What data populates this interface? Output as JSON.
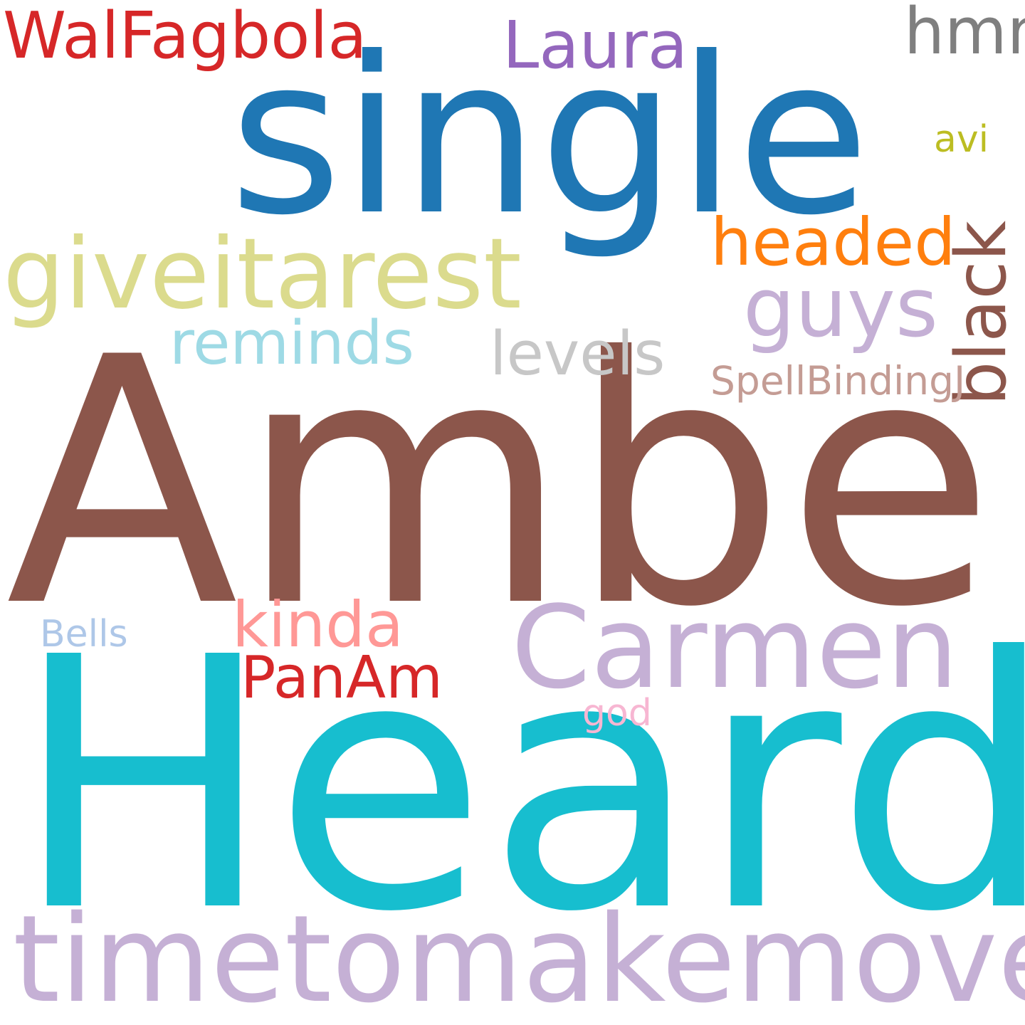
{
  "words": {
    "amber": {
      "text": "Amber",
      "color": "#8c564b"
    },
    "heard": {
      "text": "Heard",
      "color": "#17becf"
    },
    "single": {
      "text": "single",
      "color": "#1f77b4"
    },
    "timetomakemoves": {
      "text": "timetomakemoves",
      "color": "#c5b0d5"
    },
    "giveitarest": {
      "text": "giveitarest",
      "color": "#dbdb8d"
    },
    "carmen": {
      "text": "Carmen",
      "color": "#c5b0d5"
    },
    "walfagbola": {
      "text": "WalFagbola",
      "color": "#d62728"
    },
    "laura": {
      "text": "Laura",
      "color": "#9467bd"
    },
    "hmm": {
      "text": "hmm",
      "color": "#7f7f7f"
    },
    "guys": {
      "text": "guys",
      "color": "#c5b0d5"
    },
    "headed": {
      "text": "headed",
      "color": "#ff7f0e"
    },
    "black": {
      "text": "black",
      "color": "#8c564b"
    },
    "reminds": {
      "text": "reminds",
      "color": "#9edae5"
    },
    "levels": {
      "text": "levels",
      "color": "#c7c7c7"
    },
    "spellbindingj": {
      "text": "SpellBindingJ",
      "color": "#c49c94"
    },
    "avi": {
      "text": "avi",
      "color": "#bcbd22"
    },
    "kinda": {
      "text": "kinda",
      "color": "#ff9896"
    },
    "panam": {
      "text": "PanAm",
      "color": "#d62728"
    },
    "bells": {
      "text": "Bells",
      "color": "#aec7e8"
    },
    "god": {
      "text": "god",
      "color": "#f7b6d2"
    }
  }
}
